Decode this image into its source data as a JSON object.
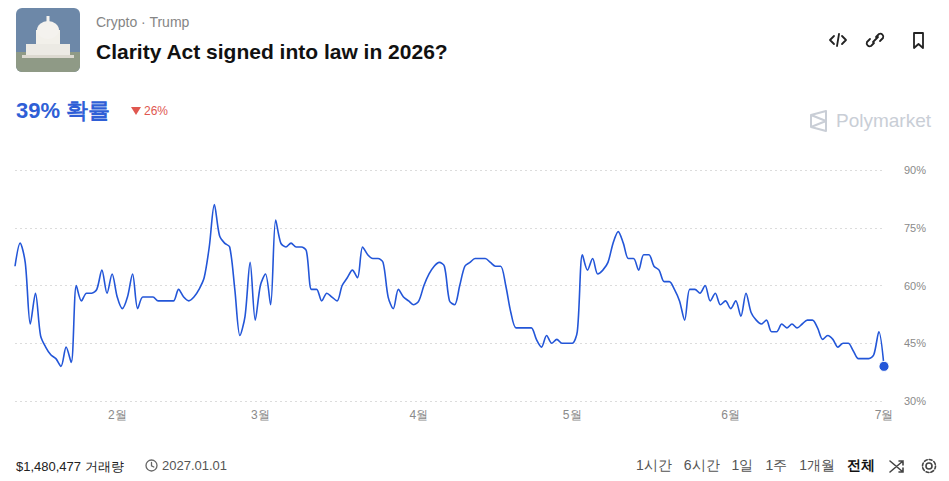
{
  "page": {
    "breadcrumb": "Crypto · Trump",
    "title": "Clarity Act signed into law in 2026?",
    "probability": "39% 확률",
    "change": "26%",
    "brand": "Polymarket",
    "volume": "$1,480,477 거래량",
    "end_date": "2027.01.01",
    "ranges": [
      "1시간",
      "6시간",
      "1일",
      "1주",
      "1개월",
      "전체"
    ]
  },
  "chart_data": {
    "type": "line",
    "color": "#2356d8",
    "grid": true,
    "categories": [
      null,
      null,
      null,
      null,
      null,
      null,
      null,
      null,
      null,
      null,
      null,
      null,
      null,
      null,
      null,
      null,
      null,
      null,
      null,
      null,
      "2월",
      null,
      null,
      null,
      null,
      null,
      null,
      null,
      null,
      null,
      null,
      null,
      null,
      null,
      null,
      null,
      null,
      null,
      null,
      null,
      null,
      null,
      null,
      null,
      null,
      null,
      null,
      null,
      "3월",
      null,
      null,
      null,
      null,
      null,
      null,
      null,
      null,
      null,
      null,
      null,
      null,
      null,
      null,
      null,
      null,
      null,
      null,
      null,
      null,
      null,
      null,
      null,
      null,
      null,
      null,
      null,
      null,
      null,
      null,
      "4월",
      null,
      null,
      null,
      null,
      null,
      null,
      null,
      null,
      null,
      null,
      null,
      null,
      null,
      null,
      null,
      null,
      null,
      null,
      null,
      null,
      null,
      null,
      null,
      null,
      null,
      null,
      null,
      null,
      null,
      "5월",
      null,
      null,
      null,
      null,
      null,
      null,
      null,
      null,
      null,
      null,
      null,
      null,
      null,
      null,
      null,
      null,
      null,
      null,
      null,
      null,
      null,
      null,
      null,
      null,
      null,
      null,
      null,
      null,
      null,
      null,
      "6월",
      null,
      null,
      null,
      null,
      null,
      null,
      null,
      null,
      null,
      null,
      null,
      null,
      null,
      null,
      null,
      null,
      null,
      null,
      null,
      null,
      null,
      null,
      null,
      null,
      null,
      null,
      null,
      null,
      null,
      "7월"
    ],
    "values": [
      65,
      71,
      66,
      50,
      58,
      47,
      44,
      42,
      41,
      39,
      44,
      40,
      60,
      56,
      58,
      58,
      59,
      64,
      58,
      63,
      57,
      54,
      57,
      63,
      54,
      57,
      57,
      57,
      56,
      56,
      56,
      56,
      59,
      57,
      56,
      57,
      59,
      62,
      70,
      81,
      73,
      71,
      70,
      59,
      47,
      52,
      66,
      51,
      60,
      63,
      55,
      77,
      71,
      70,
      71,
      70,
      70,
      69,
      59,
      59,
      56,
      58,
      57,
      56,
      60,
      62,
      64,
      62,
      70,
      68,
      67,
      67,
      66,
      57,
      54,
      59,
      57,
      56,
      55,
      56,
      60,
      63,
      65,
      66,
      65,
      56,
      55,
      60,
      65,
      66,
      67,
      67,
      67,
      66,
      65,
      65,
      60,
      53,
      49,
      49,
      49,
      49,
      46,
      44,
      47,
      45,
      46,
      45,
      45,
      45,
      48,
      68,
      64,
      67,
      63,
      64,
      66,
      71,
      74,
      71,
      67,
      67,
      64,
      68,
      68,
      65,
      64,
      61,
      61,
      59,
      56,
      51,
      59,
      59,
      58,
      60,
      56,
      58,
      55,
      56,
      54,
      56,
      52,
      58,
      53,
      51,
      50,
      51,
      48,
      48,
      50,
      49,
      50,
      49,
      50,
      51,
      51,
      49,
      46,
      47,
      46,
      44,
      45,
      45,
      43,
      41,
      41,
      41,
      42,
      48,
      39
    ],
    "ylim": [
      30,
      90
    ],
    "yticks": [
      {
        "value": 30,
        "label": "30%"
      },
      {
        "value": 45,
        "label": "45%"
      },
      {
        "value": 60,
        "label": "60%"
      },
      {
        "value": 75,
        "label": "75%"
      },
      {
        "value": 90,
        "label": "90%"
      }
    ]
  }
}
